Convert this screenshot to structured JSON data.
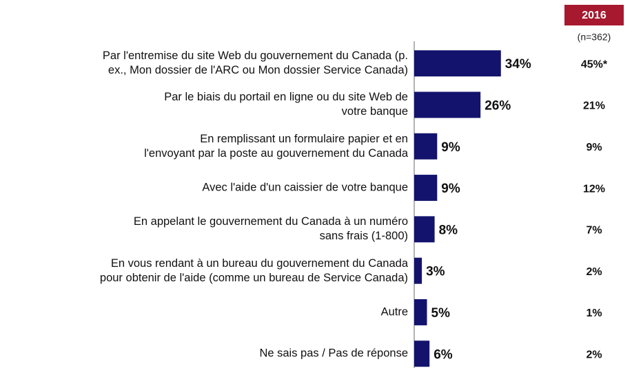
{
  "chart_data": {
    "type": "bar",
    "orientation": "horizontal",
    "categories": [
      "Par l'entremise du site Web du gouvernement du Canada (p.\nex., Mon dossier de l'ARC ou Mon dossier Service Canada)",
      "Par le biais du portail en ligne ou du site Web de\nvotre banque",
      "En remplissant un formulaire papier et en\nl'envoyant par la poste au gouvernement du Canada",
      "Avec l'aide d'un caissier de votre banque",
      "En appelant le gouvernement du Canada à un numéro\nsans frais (1-800)",
      "En vous rendant à un bureau du gouvernement du Canada\npour obtenir de l'aide (comme un bureau de Service Canada)",
      "Autre",
      "Ne sais pas / Pas de réponse"
    ],
    "values": [
      34,
      26,
      9,
      9,
      8,
      3,
      5,
      6
    ],
    "value_labels": [
      "34%",
      "26%",
      "9%",
      "9%",
      "8%",
      "3%",
      "5%",
      "6%"
    ],
    "color": "#13136e",
    "xlim": [
      0,
      50
    ],
    "comparison": {
      "title": "2016",
      "subtitle": "(n=362)",
      "color": "#a6192e",
      "values": [
        45,
        21,
        9,
        12,
        7,
        2,
        1,
        2
      ],
      "value_labels": [
        "45%*",
        "21%",
        "9%",
        "12%",
        "7%",
        "2%",
        "1%",
        "2%"
      ]
    }
  }
}
